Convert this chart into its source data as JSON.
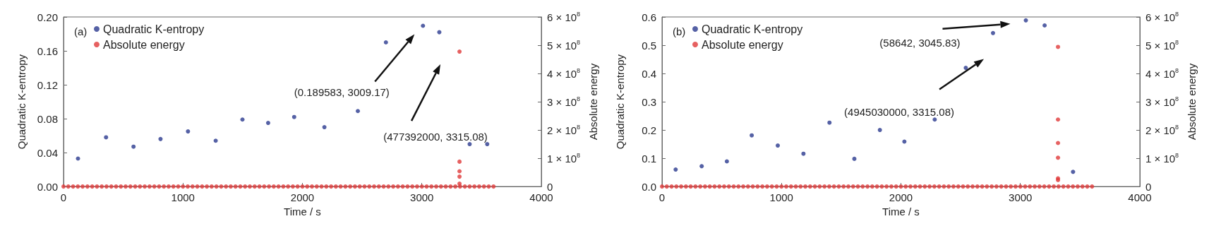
{
  "chart_data": [
    {
      "type": "scatter",
      "title": "(a)",
      "xlabel": "Time / s",
      "ylabel": "Quadratic K-entropy",
      "y2label": "Absolute energy",
      "xlim": [
        0,
        4000
      ],
      "xticks": [
        0,
        1000,
        2000,
        3000,
        4000
      ],
      "ylim": [
        0,
        0.2
      ],
      "yticks": [
        {
          "value": 0,
          "label": "0.00"
        },
        {
          "value": 0.04,
          "label": "0.04"
        },
        {
          "value": 0.08,
          "label": "0.08"
        },
        {
          "value": 0.12,
          "label": "0.12"
        },
        {
          "value": 0.16,
          "label": "0.16"
        },
        {
          "value": 0.2,
          "label": "0.20"
        }
      ],
      "y2lim": [
        0,
        600000000
      ],
      "y2ticks": [
        {
          "value": 0,
          "label": "0"
        },
        {
          "value": 100000000,
          "label": "1 × 10$^{8}$"
        },
        {
          "value": 200000000,
          "label": "2 × 10$^{8}$"
        },
        {
          "value": 300000000,
          "label": "3 × 10$^{8}$"
        },
        {
          "value": 400000000,
          "label": "4 × 10$^{8}$"
        },
        {
          "value": 500000000,
          "label": "5 × 10$^{8}$"
        },
        {
          "value": 600000000,
          "label": "6 × 10$^{8}$"
        }
      ],
      "legend": "top left",
      "grid": false,
      "marker": "circle",
      "annotations": [
        "(0.189583, 3009.17)",
        "(477392000, 3315.08)"
      ],
      "series": [
        {
          "name": "Quadratic K-entropy",
          "color": "#2b3a8f",
          "x": [
            121,
            356,
            586,
            812,
            1042,
            1274,
            1498,
            1713,
            1931,
            2184,
            2464,
            2699,
            3009.17,
            3146,
            3400,
            3547
          ],
          "values": [
            0.033,
            0.058,
            0.047,
            0.056,
            0.065,
            0.054,
            0.079,
            0.075,
            0.082,
            0.07,
            0.089,
            0.17,
            0.189583,
            0.182,
            0.05,
            0.05
          ]
        },
        {
          "name": "Absolute energy",
          "color": "#e0393a",
          "axis": "y2",
          "x": [
            3315.08,
            3315,
            3315,
            3315,
            3315,
            0,
            40,
            80,
            120,
            160,
            200,
            240,
            280,
            320,
            360,
            400,
            440,
            480,
            520,
            560,
            600,
            640,
            680,
            720,
            760,
            800,
            840,
            880,
            920,
            960,
            1000,
            1040,
            1080,
            1120,
            1160,
            1200,
            1240,
            1280,
            1320,
            1360,
            1400,
            1440,
            1480,
            1520,
            1560,
            1600,
            1640,
            1680,
            1720,
            1760,
            1800,
            1840,
            1880,
            1920,
            1960,
            2000,
            2040,
            2080,
            2120,
            2160,
            2200,
            2240,
            2280,
            2320,
            2360,
            2400,
            2440,
            2480,
            2520,
            2560,
            2600,
            2640,
            2680,
            2720,
            2760,
            2800,
            2840,
            2880,
            2920,
            2960,
            3000,
            3040,
            3080,
            3120,
            3160,
            3200,
            3240,
            3280,
            3320,
            3360,
            3400,
            3440,
            3480,
            3520,
            3560,
            3600
          ],
          "values": [
            477392000,
            88000000,
            54000000,
            35000000,
            10000000,
            0,
            0,
            0,
            0,
            0,
            0,
            0,
            0,
            0,
            0,
            0,
            0,
            0,
            0,
            0,
            0,
            0,
            0,
            0,
            0,
            0,
            0,
            0,
            0,
            0,
            0,
            0,
            0,
            0,
            0,
            0,
            0,
            0,
            0,
            0,
            0,
            0,
            0,
            0,
            0,
            0,
            0,
            0,
            0,
            0,
            0,
            0,
            0,
            0,
            0,
            0,
            0,
            0,
            0,
            0,
            0,
            0,
            0,
            0,
            0,
            0,
            0,
            0,
            0,
            0,
            0,
            0,
            0,
            0,
            0,
            0,
            0,
            0,
            0,
            0,
            0,
            0,
            0,
            0,
            0,
            0,
            0,
            0,
            0,
            0,
            0,
            0,
            0,
            0,
            0,
            0
          ]
        }
      ]
    },
    {
      "type": "scatter",
      "title": "(b)",
      "xlabel": "Time / s",
      "ylabel": "Quadratic K-entropy",
      "y2label": "Absolute energy",
      "xlim": [
        0,
        4000
      ],
      "xticks": [
        0,
        1000,
        2000,
        3000,
        4000
      ],
      "ylim": [
        0,
        0.6
      ],
      "yticks": [
        {
          "value": 0,
          "label": "0.0"
        },
        {
          "value": 0.1,
          "label": "0.1"
        },
        {
          "value": 0.2,
          "label": "0.2"
        },
        {
          "value": 0.3,
          "label": "0.3"
        },
        {
          "value": 0.4,
          "label": "0.4"
        },
        {
          "value": 0.5,
          "label": "0.5"
        },
        {
          "value": 0.6,
          "label": "0.6"
        }
      ],
      "y2lim": [
        0,
        600000000
      ],
      "y2ticks": [
        {
          "value": 0,
          "label": "0"
        },
        {
          "value": 100000000,
          "label": "1 × 10$^{8}$"
        },
        {
          "value": 200000000,
          "label": "2 × 10$^{8}$"
        },
        {
          "value": 300000000,
          "label": "3 × 10$^{8}$"
        },
        {
          "value": 400000000,
          "label": "4 × 10$^{8}$"
        },
        {
          "value": 500000000,
          "label": "5 × 10$^{8}$"
        },
        {
          "value": 600000000,
          "label": "6 × 10$^{8}$"
        }
      ],
      "legend": "top left",
      "grid": false,
      "marker": "circle",
      "annotations": [
        "(58642, 3045.83)",
        "(4945030000, 3315.08)"
      ],
      "series": [
        {
          "name": "Quadratic K-entropy",
          "color": "#2b3a8f",
          "x": [
            114,
            332,
            543,
            751,
            969,
            1184,
            1402,
            1610,
            1824,
            2029,
            2283,
            2543,
            2771,
            3045.83,
            3203,
            3441
          ],
          "values": [
            0.06,
            0.072,
            0.089,
            0.181,
            0.145,
            0.116,
            0.226,
            0.098,
            0.2,
            0.159,
            0.237,
            0.42,
            0.543,
            0.588,
            0.57,
            0.052
          ]
        },
        {
          "name": "Absolute energy",
          "color": "#e0393a",
          "axis": "y2",
          "x": [
            3315.08,
            3315,
            3315,
            3315,
            3315,
            3315,
            0,
            40,
            80,
            120,
            160,
            200,
            240,
            280,
            320,
            360,
            400,
            440,
            480,
            520,
            560,
            600,
            640,
            680,
            720,
            760,
            800,
            840,
            880,
            920,
            960,
            1000,
            1040,
            1080,
            1120,
            1160,
            1200,
            1240,
            1280,
            1320,
            1360,
            1400,
            1440,
            1480,
            1520,
            1560,
            1600,
            1640,
            1680,
            1720,
            1760,
            1800,
            1840,
            1880,
            1920,
            1960,
            2000,
            2040,
            2080,
            2120,
            2160,
            2200,
            2240,
            2280,
            2320,
            2360,
            2400,
            2440,
            2480,
            2520,
            2560,
            2600,
            2640,
            2680,
            2720,
            2760,
            2800,
            2840,
            2880,
            2920,
            2960,
            3000,
            3040,
            3080,
            3120,
            3160,
            3200,
            3240,
            3280,
            3320,
            3360,
            3400,
            3440,
            3480,
            3520,
            3560,
            3600
          ],
          "values": [
            494000000,
            237000000,
            154000000,
            102000000,
            29000000,
            23000000,
            0,
            0,
            0,
            0,
            0,
            0,
            0,
            0,
            0,
            0,
            0,
            0,
            0,
            0,
            0,
            0,
            0,
            0,
            0,
            0,
            0,
            0,
            0,
            0,
            0,
            0,
            0,
            0,
            0,
            0,
            0,
            0,
            0,
            0,
            0,
            0,
            0,
            0,
            0,
            0,
            0,
            0,
            0,
            0,
            0,
            0,
            0,
            0,
            0,
            0,
            0,
            0,
            0,
            0,
            0,
            0,
            0,
            0,
            0,
            0,
            0,
            0,
            0,
            0,
            0,
            0,
            0,
            0,
            0,
            0,
            0,
            0,
            0,
            0,
            0,
            0,
            0,
            0,
            0,
            0,
            0,
            0,
            0,
            0,
            0,
            0,
            0,
            0,
            0,
            0,
            0
          ]
        }
      ]
    }
  ]
}
